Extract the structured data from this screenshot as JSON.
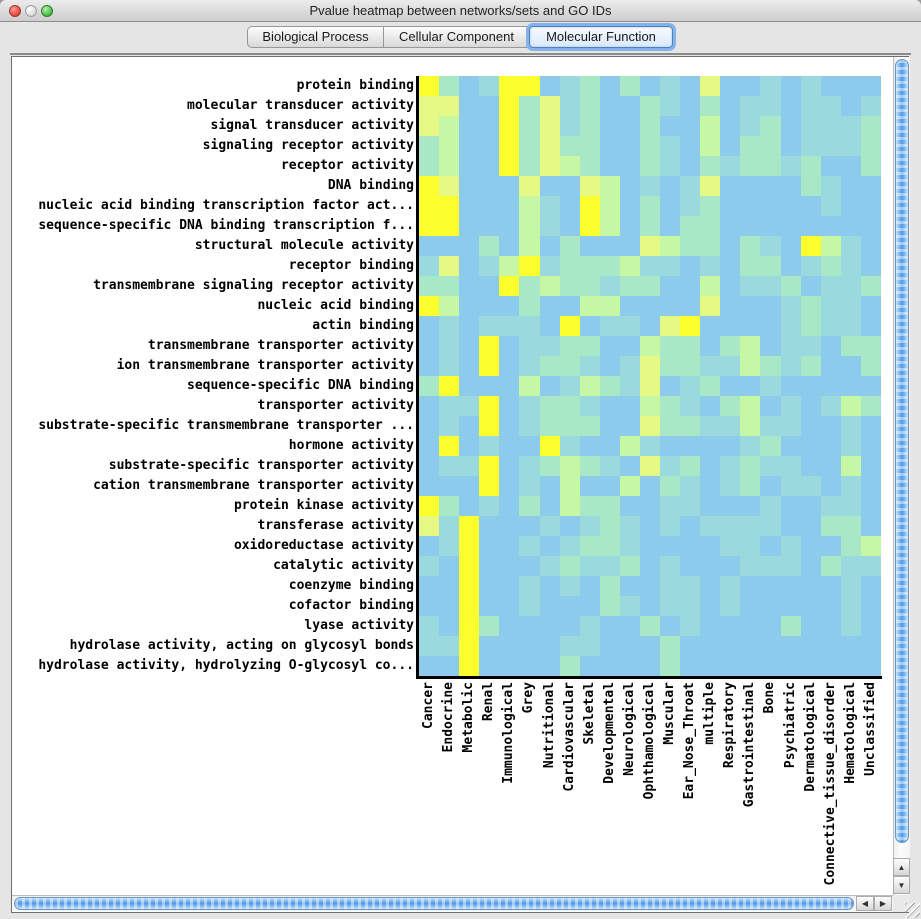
{
  "window": {
    "title": "Pvalue heatmap between networks/sets and GO IDs",
    "traffic_lights": [
      "close",
      "minimize",
      "zoom"
    ]
  },
  "tabs": [
    {
      "label": "Biological Process",
      "selected": false
    },
    {
      "label": "Cellular Component",
      "selected": false
    },
    {
      "label": "Molecular Function",
      "selected": true
    }
  ],
  "scrollbars": {
    "up_arrow": "▲",
    "down_arrow": "▼",
    "left_arrow": "◀",
    "right_arrow": "▶"
  },
  "chart_data": {
    "type": "heatmap",
    "title": "Pvalue heatmap between networks/sets and GO IDs",
    "rows": [
      "protein binding",
      "molecular transducer activity",
      "signal transducer activity",
      "signaling receptor activity",
      "receptor activity",
      "DNA binding",
      "nucleic acid binding transcription factor act...",
      "sequence-specific DNA binding transcription f...",
      "structural molecule activity",
      "receptor binding",
      "transmembrane signaling receptor activity",
      "nucleic acid binding",
      "actin binding",
      "transmembrane transporter activity",
      "ion transmembrane transporter activity",
      "sequence-specific DNA binding",
      "transporter activity",
      "substrate-specific transmembrane transporter ...",
      "hormone activity",
      "substrate-specific transporter activity",
      "cation transmembrane transporter activity",
      "protein kinase activity",
      "transferase activity",
      "oxidoreductase activity",
      "catalytic activity",
      "coenzyme binding",
      "cofactor binding",
      "lyase activity",
      "hydrolase activity, acting on glycosyl bonds",
      "hydrolase activity, hydrolyzing O-glycosyl co..."
    ],
    "columns": [
      "Cancer",
      "Endocrine",
      "Metabolic",
      "Renal",
      "Immunological",
      "Grey",
      "Nutritional",
      "Cardiovascular",
      "Skeletal",
      "Developmental",
      "Neurological",
      "Ophthamological",
      "Muscular",
      "Ear_Nose_Throat",
      "multiple",
      "Respiratory",
      "Gastrointestinal",
      "Bone",
      "Psychiatric",
      "Dermatological",
      "Connective_tissue_disorder",
      "Hematological",
      "Unclassified"
    ],
    "palette": {
      "Y": "#FDFE2D",
      "y": "#E6F985",
      "g": "#C6F7A4",
      "c": "#A9E8C6",
      "t": "#9AD9DD",
      "B": "#8CCBEC"
    },
    "grid": [
      "YcBtYYBtcBcBtByBBtBtBBB",
      "yyBBYcytcBBctBcBttBttBt",
      "ygBBYcytcBBcBBgBtcBtttc",
      "cgBBYcyccBBctBgBccBtttc",
      "cgBBYcygcBBctBctcctcBBc",
      "YyBBByBBygBtBtyBBBBctBB",
      "YYBBBgtBYgBcBtcBBBBBtBB",
      "YYBBBgtBYgBcBccBBBBBBBB",
      "BBBcBgBcBBBygccBctBYgtB",
      "tyBtgYtcccgttBtBccBtctB",
      "ccBBYcgcctccBBgBttcBttc",
      "YgBBBcBBggBBBByBBBtcttB",
      "BtBtttBYBttByYBBBBtcttB",
      "BtBYBttccBBgccBcgBttBcc",
      "BtBYBtcctBtyccttgctcBBc",
      "cYBBBgBtgctyBtcBBtBBBBB",
      "BttYBtcctBBgctBcgBtBtgc",
      "BtBYBtcccBByccttgttBBtB",
      "BYBtBBYtBBgtBBBBtcBBBtB",
      "BttYBtcgctBytcBtcttBBgB",
      "BBBYBtBgBBgBctBtcBttBtB",
      "YcBtBcBgccBBttBBBtBBttB",
      "ytYBBBtBtctBtBttttBBccB",
      "BtYBBtBtcctBBBBttBtBBcg",
      "tBYBBBtcttcBtBBBtttBctt",
      "BBYBBtBtBcBBttBtBBBBBtB",
      "BBYBBtBBBctBttBtBBBBBtB",
      "tBYcBBBBtBBcBtBBBBcBBtB",
      "ttYBBBBttBBBcBBBBBBBBBB",
      "BBYBBBBcBBBBcBBBBBBBBBB"
    ]
  }
}
